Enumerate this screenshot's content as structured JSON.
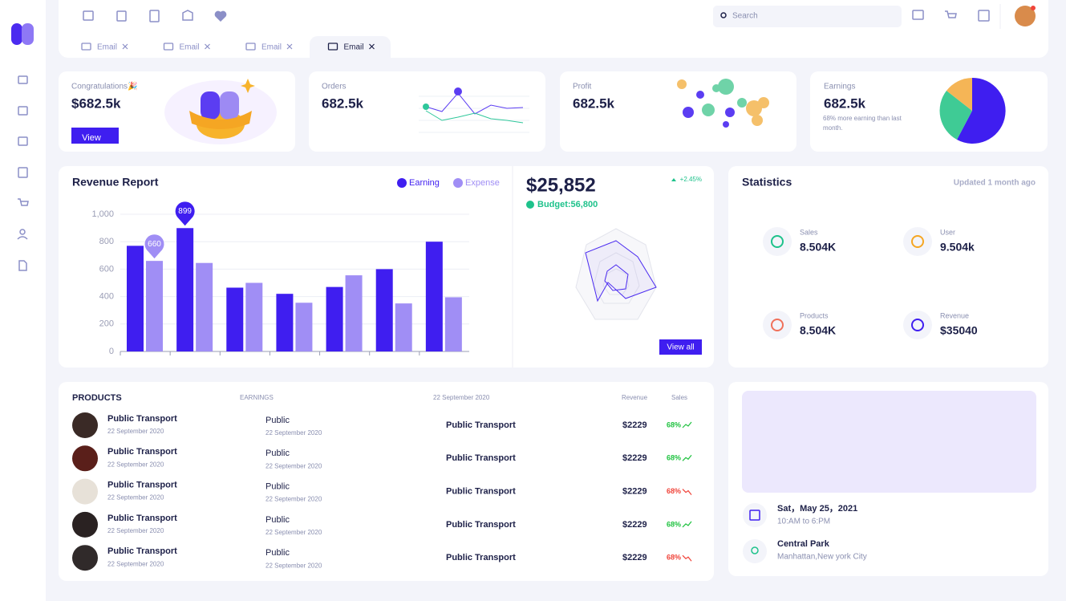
{
  "header": {
    "search_placeholder": "Search",
    "tabs": [
      "Email",
      "Email",
      "Email",
      "Email"
    ]
  },
  "cards": {
    "congrats": {
      "title": "Congratulations🎉",
      "value": "$682.5k",
      "button": "View"
    },
    "orders": {
      "title": "Orders",
      "value": "682.5k"
    },
    "profit": {
      "title": "Profit",
      "value": "682.5k"
    },
    "earnings": {
      "title": "Earnings",
      "value": "682.5k",
      "note": "68% more earning than last month."
    }
  },
  "chart_data": {
    "type": "bar",
    "title": "Revenue Report",
    "categories": [
      null,
      null,
      null,
      null,
      null,
      null,
      null
    ],
    "series": [
      {
        "name": "Earning",
        "color": "#3f1ef0",
        "values": [
          770,
          899,
          465,
          420,
          470,
          600,
          800
        ],
        "value_labels": [
          null,
          "899",
          null,
          null,
          null,
          null,
          null
        ]
      },
      {
        "name": "Expense",
        "color": "#a08ef5",
        "values": [
          660,
          645,
          500,
          355,
          555,
          350,
          395
        ],
        "value_labels": [
          "660",
          null,
          null,
          null,
          null,
          null,
          null
        ]
      }
    ],
    "ylim": [
      0,
      1000
    ],
    "yticks": [
      0,
      200,
      400,
      600,
      800,
      {
        "value": 1000,
        "label": "1,000"
      }
    ],
    "grid": true
  },
  "budget": {
    "value": "$25,852",
    "change": "+2.45%",
    "budget": "Budget:56,800",
    "button": "View all"
  },
  "statistics": {
    "title": "Statistics",
    "updated": "Updated 1 month ago",
    "items": [
      {
        "label": "Sales",
        "value": "8.504K"
      },
      {
        "label": "User",
        "value": "9.504k"
      },
      {
        "label": "Products",
        "value": "8.504K"
      },
      {
        "label": "Revenue",
        "value": "$35040"
      }
    ]
  },
  "products": {
    "headers": [
      "PRODUCTS",
      "EARNINGS",
      "22 September 2020",
      "Revenue",
      "Sales"
    ],
    "rows": [
      {
        "name": "Public Transport",
        "date": "22 September 2020",
        "earning": "Public",
        "earning_date": "22 September 2020",
        "item": "Public Transport",
        "revenue": "$2229",
        "sales": "68%",
        "trend": "up"
      },
      {
        "name": "Public Transport",
        "date": "22 September 2020",
        "earning": "Public",
        "earning_date": "22 September 2020",
        "item": "Public Transport",
        "revenue": "$2229",
        "sales": "68%",
        "trend": "up"
      },
      {
        "name": "Public Transport",
        "date": "22 September 2020",
        "earning": "Public",
        "earning_date": "22 September 2020",
        "item": "Public Transport",
        "revenue": "$2229",
        "sales": "68%",
        "trend": "down"
      },
      {
        "name": "Public Transport",
        "date": "22 September 2020",
        "earning": "Public",
        "earning_date": "22 September 2020",
        "item": "Public Transport",
        "revenue": "$2229",
        "sales": "68%",
        "trend": "up"
      },
      {
        "name": "Public Transport",
        "date": "22 September 2020",
        "earning": "Public",
        "earning_date": "22 September 2020",
        "item": "Public Transport",
        "revenue": "$2229",
        "sales": "68%",
        "trend": "down"
      }
    ]
  },
  "event": {
    "date": "Sat，May 25，2021",
    "time": "10:AM to 6:PM",
    "place": "Central Park",
    "address": "Manhattan,New york City"
  }
}
